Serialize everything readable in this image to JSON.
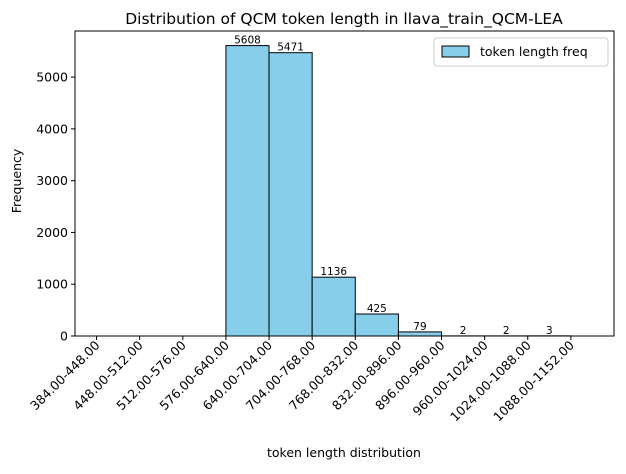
{
  "colors": {
    "bar_fill": "#87CEEB",
    "bar_edge": "#000000",
    "background": "#ffffff",
    "axis": "#000000"
  },
  "chart_data": {
    "type": "bar",
    "title": "Distribution of QCM token length in llava_train_QCM-LEA",
    "xlabel": "token length distribution",
    "ylabel": "Frequency",
    "categories": [
      "384.00-448.00",
      "448.00-512.00",
      "512.00-576.00",
      "576.00-640.00",
      "640.00-704.00",
      "704.00-768.00",
      "768.00-832.00",
      "832.00-896.00",
      "896.00-960.00",
      "960.00-1024.00",
      "1024.00-1088.00",
      "1088.00-1152.00"
    ],
    "bins": [
      {
        "start": 576,
        "end": 640,
        "value": 5608,
        "label": "5608"
      },
      {
        "start": 640,
        "end": 704,
        "value": 5471,
        "label": "5471"
      },
      {
        "start": 704,
        "end": 768,
        "value": 1136,
        "label": "1136"
      },
      {
        "start": 768,
        "end": 832,
        "value": 425,
        "label": "425"
      },
      {
        "start": 832,
        "end": 896,
        "value": 79,
        "label": "79"
      },
      {
        "start": 896,
        "end": 960,
        "value": 2,
        "label": "2"
      },
      {
        "start": 960,
        "end": 1024,
        "value": 2,
        "label": "2"
      },
      {
        "start": 1024,
        "end": 1088,
        "value": 3,
        "label": "3"
      }
    ],
    "xlim": [
      352,
      1152
    ],
    "ylim": [
      0,
      5890
    ],
    "yticks": [
      0,
      1000,
      2000,
      3000,
      4000,
      5000
    ],
    "ytick_labels": [
      "0",
      "1000",
      "2000",
      "3000",
      "4000",
      "5000"
    ],
    "xtick_positions": [
      384,
      448,
      512,
      576,
      640,
      704,
      768,
      832,
      896,
      960,
      1024,
      1088
    ],
    "grid": false,
    "legend": {
      "entries": [
        "token length freq"
      ],
      "placement": "top-right"
    }
  }
}
